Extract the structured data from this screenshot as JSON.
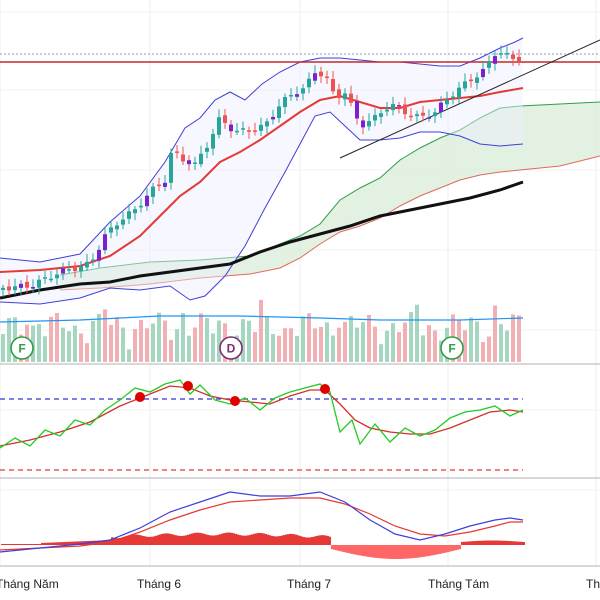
{
  "chart_data": {
    "type": "candlestick",
    "x_axis": {
      "labels": [
        "Tháng Năm",
        "Tháng 6",
        "Tháng 7",
        "Tháng Tám",
        "Th"
      ]
    },
    "price_panel": {
      "indicators": [
        "bollinger-bands",
        "ichimoku-cloud",
        "moving-average-short",
        "moving-average-long",
        "trendline",
        "resistance-line"
      ],
      "colors": {
        "up": "#26a69a",
        "down": "#ef5350",
        "bollinger": "#3f3fd9",
        "ma_short": "#e53935",
        "ma_long": "#111111",
        "cloud_fill": "#d8ecd8",
        "cloud_lead_a": "#2e9e44",
        "cloud_lead_b": "#e06a5a",
        "resistance": "#c62828",
        "trendline": "#222222"
      },
      "markers": [
        {
          "letter": "F",
          "color": "#2e9e44"
        },
        {
          "letter": "D",
          "color": "#7b2d6e"
        },
        {
          "letter": "F",
          "color": "#2e9e44"
        }
      ]
    },
    "volume_panel": {
      "colors": {
        "up": "#a5d6c0",
        "down": "#f2b0b4",
        "average": "#2196f3"
      }
    },
    "stochastic_panel": {
      "levels": [
        80,
        20
      ],
      "colors": {
        "fast": "#22cc22",
        "slow": "#d32f2f",
        "upper_level": "#3333dd",
        "lower_level": "#e53935",
        "signal_dot": "#e00000"
      }
    },
    "macd_panel": {
      "colors": {
        "macd": "#3f3fd9",
        "signal": "#e53935",
        "histogram_pos": "#e53935",
        "histogram_neg": "#ff6666"
      }
    }
  }
}
